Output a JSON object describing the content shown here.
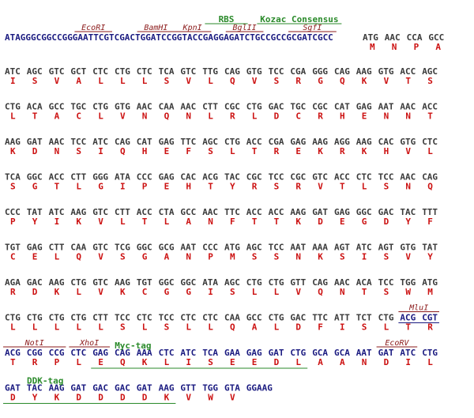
{
  "colors": {
    "dna_vector": "#1a1a80",
    "dna_insert": "#3a3a3a",
    "amino_acid": "#cc1111",
    "enzyme": "#8b1a1a",
    "feature": "#2a8a2a",
    "underline_enzyme": "#8b1a1a",
    "underline_feature": "#2a8a2a",
    "underline_blue": "#1a1a80"
  },
  "header": {
    "vector_seq": "ATAGGGCGGCCGGGAATTCGTCGACTGGATCCGGTACCGAGGAGATCTGCCGCCGCGATCGCC",
    "codons": [
      "ATG",
      "AAC",
      "CCA",
      "GCC"
    ],
    "aa": [
      "M",
      "N",
      "P",
      "A"
    ],
    "enzymes": [
      {
        "name": "EcoRI",
        "start": 14,
        "len": 6
      },
      {
        "name": "BamHI",
        "start": 26,
        "len": 6
      },
      {
        "name": "KpnI",
        "start": 33,
        "len": 6
      },
      {
        "name": "BglII",
        "start": 43,
        "len": 6
      },
      {
        "name": "SgfI",
        "start": 55,
        "len": 8
      }
    ],
    "features": [
      {
        "name": "RBS",
        "start": 39,
        "len": 7
      },
      {
        "name": "Kozac Consensus",
        "start": 49,
        "len": 15
      }
    ]
  },
  "rows": [
    {
      "codons": [
        "ATC",
        "AGC",
        "GTC",
        "GCT",
        "CTC",
        "CTG",
        "CTC",
        "TCA",
        "GTC",
        "TTG",
        "CAG",
        "GTG",
        "TCC",
        "CGA",
        "GGG",
        "CAG",
        "AAG",
        "GTG",
        "ACC",
        "AGC"
      ],
      "aa": [
        "I",
        "S",
        "V",
        "A",
        "L",
        "L",
        "L",
        "S",
        "V",
        "L",
        "Q",
        "V",
        "S",
        "R",
        "G",
        "Q",
        "K",
        "V",
        "T",
        "S"
      ]
    },
    {
      "codons": [
        "CTG",
        "ACA",
        "GCC",
        "TGC",
        "CTG",
        "GTG",
        "AAC",
        "CAA",
        "AAC",
        "CTT",
        "CGC",
        "CTG",
        "GAC",
        "TGC",
        "CGC",
        "CAT",
        "GAG",
        "AAT",
        "AAC",
        "ACC"
      ],
      "aa": [
        "L",
        "T",
        "A",
        "C",
        "L",
        "V",
        "N",
        "Q",
        "N",
        "L",
        "R",
        "L",
        "D",
        "C",
        "R",
        "H",
        "E",
        "N",
        "N",
        "T"
      ]
    },
    {
      "codons": [
        "AAG",
        "GAT",
        "AAC",
        "TCC",
        "ATC",
        "CAG",
        "CAT",
        "GAG",
        "TTC",
        "AGC",
        "CTG",
        "ACC",
        "CGA",
        "GAG",
        "AAG",
        "AGG",
        "AAG",
        "CAC",
        "GTG",
        "CTC"
      ],
      "aa": [
        "K",
        "D",
        "N",
        "S",
        "I",
        "Q",
        "H",
        "E",
        "F",
        "S",
        "L",
        "T",
        "R",
        "E",
        "K",
        "R",
        "K",
        "H",
        "V",
        "L"
      ]
    },
    {
      "codons": [
        "TCA",
        "GGC",
        "ACC",
        "CTT",
        "GGG",
        "ATA",
        "CCC",
        "GAG",
        "CAC",
        "ACG",
        "TAC",
        "CGC",
        "TCC",
        "CGC",
        "GTC",
        "ACC",
        "CTC",
        "TCC",
        "AAC",
        "CAG"
      ],
      "aa": [
        "S",
        "G",
        "T",
        "L",
        "G",
        "I",
        "P",
        "E",
        "H",
        "T",
        "Y",
        "R",
        "S",
        "R",
        "V",
        "T",
        "L",
        "S",
        "N",
        "Q"
      ]
    },
    {
      "codons": [
        "CCC",
        "TAT",
        "ATC",
        "AAG",
        "GTC",
        "CTT",
        "ACC",
        "CTA",
        "GCC",
        "AAC",
        "TTC",
        "ACC",
        "ACC",
        "AAG",
        "GAT",
        "GAG",
        "GGC",
        "GAC",
        "TAC",
        "TTT"
      ],
      "aa": [
        "P",
        "Y",
        "I",
        "K",
        "V",
        "L",
        "T",
        "L",
        "A",
        "N",
        "F",
        "T",
        "T",
        "K",
        "D",
        "E",
        "G",
        "D",
        "Y",
        "F"
      ]
    },
    {
      "codons": [
        "TGT",
        "GAG",
        "CTT",
        "CAA",
        "GTC",
        "TCG",
        "GGC",
        "GCG",
        "AAT",
        "CCC",
        "ATG",
        "AGC",
        "TCC",
        "AAT",
        "AAA",
        "AGT",
        "ATC",
        "AGT",
        "GTG",
        "TAT"
      ],
      "aa": [
        "C",
        "E",
        "L",
        "Q",
        "V",
        "S",
        "G",
        "A",
        "N",
        "P",
        "M",
        "S",
        "S",
        "N",
        "K",
        "S",
        "I",
        "S",
        "V",
        "Y"
      ]
    },
    {
      "codons": [
        "AGA",
        "GAC",
        "AAG",
        "CTG",
        "GTC",
        "AAG",
        "TGT",
        "GGC",
        "GGC",
        "ATA",
        "AGC",
        "CTG",
        "CTG",
        "GTT",
        "CAG",
        "AAC",
        "ACA",
        "TCC",
        "TGG",
        "ATG"
      ],
      "aa": [
        "R",
        "D",
        "K",
        "L",
        "V",
        "K",
        "C",
        "G",
        "G",
        "I",
        "S",
        "L",
        "L",
        "V",
        "Q",
        "N",
        "T",
        "S",
        "W",
        "M"
      ]
    },
    {
      "codons": [
        "CTG",
        "CTG",
        "CTG",
        "CTG",
        "CTT",
        "TCC",
        "CTC",
        "TCC",
        "CTC",
        "CTC",
        "CAA",
        "GCC",
        "CTG",
        "GAC",
        "TTC",
        "ATT",
        "TCT",
        "CTG",
        "ACG",
        "CGT"
      ],
      "aa": [
        "L",
        "L",
        "L",
        "L",
        "L",
        "S",
        "L",
        "S",
        "L",
        "L",
        "Q",
        "A",
        "L",
        "D",
        "F",
        "I",
        "S",
        "L",
        "T",
        "R"
      ],
      "blue_from": 18,
      "enzymes": [
        {
          "name": "MluI",
          "cstart": 18,
          "clen": 2
        }
      ]
    },
    {
      "codons": [
        "ACG",
        "CGG",
        "CCG",
        "CTC",
        "GAG",
        "CAG",
        "AAA",
        "CTC",
        "ATC",
        "TCA",
        "GAA",
        "GAG",
        "GAT",
        "CTG",
        "GCA",
        "GCA",
        "AAT",
        "GAT",
        "ATC",
        "CTG"
      ],
      "aa": [
        "T",
        "R",
        "P",
        "L",
        "E",
        "Q",
        "K",
        "L",
        "I",
        "S",
        "E",
        "E",
        "D",
        "L",
        "A",
        "A",
        "N",
        "D",
        "I",
        "L"
      ],
      "blue_from": 0,
      "enzymes": [
        {
          "name": "NotI",
          "cstart": 0,
          "clen": 3
        },
        {
          "name": "XhoI",
          "cstart": 3,
          "clen": 2
        },
        {
          "name": "EcoRV",
          "cstart": 17,
          "clen": 2
        }
      ],
      "features": [
        {
          "name": "Myc-tag",
          "cstart": 4,
          "clen": 10
        }
      ]
    },
    {
      "codons": [
        "GAT",
        "TAC",
        "AAG",
        "GAT",
        "GAC",
        "GAC",
        "GAT",
        "AAG",
        "GTT",
        "TGG",
        "GTA",
        "GGAAG"
      ],
      "aa": [
        "D",
        "Y",
        "K",
        "D",
        "D",
        "D",
        "D",
        "K",
        "V",
        "W",
        "V",
        ""
      ],
      "blue_from": 0,
      "features": [
        {
          "name": "DDK-tag",
          "cstart": 0,
          "clen": 8
        }
      ]
    }
  ]
}
